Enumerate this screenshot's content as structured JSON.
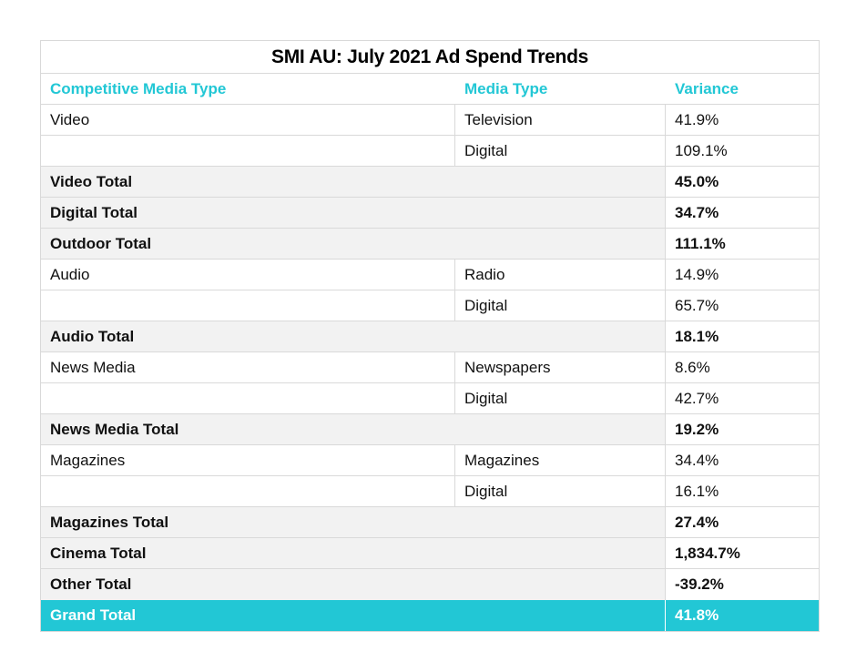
{
  "title": "SMI AU: July 2021 Ad Spend Trends",
  "headers": {
    "competitive_media_type": "Competitive Media Type",
    "media_type": "Media Type",
    "variance": "Variance"
  },
  "rows": [
    {
      "kind": "detail",
      "competitive": "Video",
      "media": "Television",
      "variance": "41.9%"
    },
    {
      "kind": "detail",
      "competitive": "",
      "media": "Digital",
      "variance": "109.1%"
    },
    {
      "kind": "total",
      "label": "Video Total",
      "variance": "45.0%"
    },
    {
      "kind": "total",
      "label": "Digital Total",
      "variance": "34.7%"
    },
    {
      "kind": "total",
      "label": "Outdoor Total",
      "variance": "111.1%"
    },
    {
      "kind": "detail",
      "competitive": "Audio",
      "media": "Radio",
      "variance": "14.9%"
    },
    {
      "kind": "detail",
      "competitive": "",
      "media": "Digital",
      "variance": "65.7%"
    },
    {
      "kind": "total",
      "label": "Audio Total",
      "variance": "18.1%"
    },
    {
      "kind": "detail",
      "competitive": "News Media",
      "media": "Newspapers",
      "variance": "8.6%"
    },
    {
      "kind": "detail",
      "competitive": "",
      "media": "Digital",
      "variance": "42.7%"
    },
    {
      "kind": "total",
      "label": "News Media Total",
      "variance": "19.2%"
    },
    {
      "kind": "detail",
      "competitive": "Magazines",
      "media": "Magazines",
      "variance": "34.4%"
    },
    {
      "kind": "detail",
      "competitive": "",
      "media": "Digital",
      "variance": "16.1%"
    },
    {
      "kind": "total",
      "label": "Magazines Total",
      "variance": "27.4%"
    },
    {
      "kind": "total",
      "label": "Cinema Total",
      "variance": "1,834.7%"
    },
    {
      "kind": "total",
      "label": "Other Total",
      "variance": "-39.2%"
    }
  ],
  "grand_total": {
    "label": "Grand Total",
    "variance": "41.8%"
  },
  "colors": {
    "accent": "#22c7d5",
    "total_row_bg": "#f2f2f2",
    "border": "#d9d9d9"
  }
}
